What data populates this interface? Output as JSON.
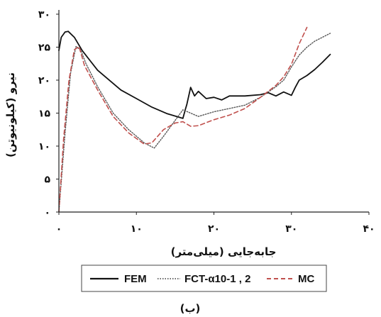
{
  "chart_data": {
    "type": "line",
    "xlabel": "جابه‌جایی (میلی‌متر)",
    "ylabel": "نیرو (کیلونیوتن)",
    "xlim": [
      0,
      40
    ],
    "ylim": [
      0,
      30
    ],
    "x_ticks": [
      0,
      10,
      20,
      30,
      40
    ],
    "y_ticks": [
      0,
      5,
      10,
      15,
      20,
      25,
      30
    ],
    "x_tick_labels": [
      "۰",
      "۱۰",
      "۲۰",
      "۳۰",
      "۴۰"
    ],
    "y_tick_labels": [
      "۰",
      "۵",
      "۱۰",
      "۱۵",
      "۲۰",
      "۲۵",
      "۳۰"
    ],
    "grid": false,
    "legend_position": "bottom",
    "caption": "(ب)",
    "series": [
      {
        "name": "FEM",
        "style": "solid",
        "color": "#111111",
        "x": [
          0,
          0.3,
          0.8,
          1.2,
          2,
          3,
          5,
          8,
          10,
          12,
          14,
          16,
          16.3,
          16.5,
          17,
          17.5,
          18,
          19,
          20,
          21,
          22,
          24,
          26,
          27,
          28,
          29,
          30,
          30.5,
          31,
          32,
          33,
          34,
          35
        ],
        "y": [
          24.5,
          26.5,
          27.3,
          27.4,
          26.5,
          24.5,
          21.5,
          18.5,
          17.2,
          15.9,
          14.9,
          14.2,
          15.5,
          16.3,
          18.9,
          17.6,
          18.3,
          17.2,
          17.4,
          17.0,
          17.6,
          17.6,
          17.8,
          18.1,
          17.6,
          18.2,
          17.7,
          18.9,
          20.0,
          20.7,
          21.6,
          22.7,
          23.9
        ]
      },
      {
        "name": "FCT-α10-1 , 2",
        "style": "dotted",
        "color": "#555555",
        "x": [
          0,
          0.8,
          1.5,
          2.2,
          2.8,
          3.5,
          5,
          7,
          9,
          11,
          12.3,
          13.5,
          16,
          18,
          20,
          22,
          24,
          26,
          28,
          29,
          30,
          31,
          32,
          33,
          34,
          35
        ],
        "y": [
          0,
          12,
          21,
          25.1,
          24.6,
          22.5,
          19,
          15,
          12.5,
          10.5,
          9.7,
          11.5,
          15.5,
          14.5,
          15.2,
          15.7,
          16.2,
          17.4,
          19.0,
          20.0,
          22.0,
          23.8,
          25.0,
          25.9,
          26.5,
          27.1
        ]
      },
      {
        "name": "MC",
        "style": "dashed",
        "color": "#c0504d",
        "x": [
          0,
          0.6,
          1.3,
          2,
          2.6,
          3.3,
          5,
          7,
          9,
          11,
          12,
          13.5,
          15,
          16,
          17,
          18,
          20,
          22,
          24,
          26,
          28,
          29,
          30,
          31,
          32
        ],
        "y": [
          0,
          11,
          20,
          24.6,
          25.1,
          22.2,
          18.5,
          14.5,
          12.0,
          10.3,
          10.5,
          12.5,
          13.5,
          13.7,
          13.0,
          13.1,
          14.0,
          14.7,
          15.7,
          17.4,
          19.2,
          20.5,
          22.4,
          25.5,
          28.0
        ]
      }
    ]
  }
}
